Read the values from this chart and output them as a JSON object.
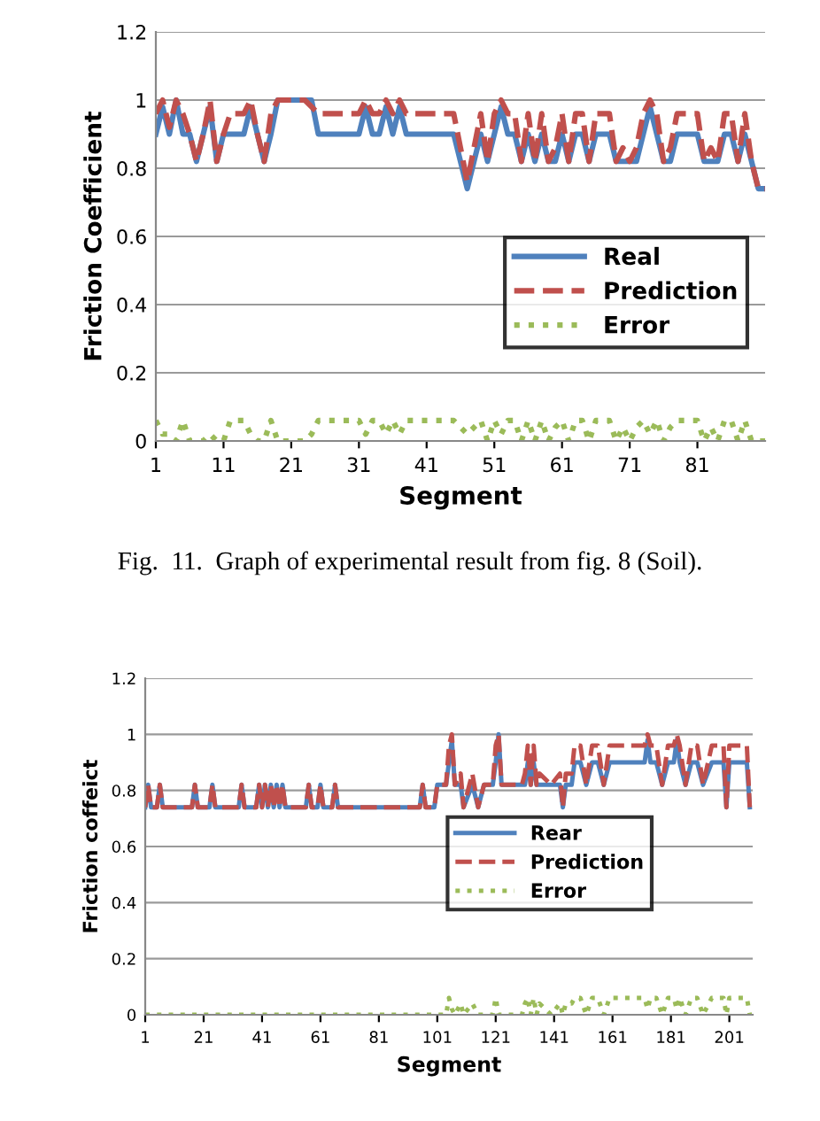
{
  "chart_data": [
    {
      "type": "line",
      "xlabel": "Segment",
      "ylabel": "Friction Coefficient",
      "annotations": [
        "Fig.  11.  Graph of experimental result from fig. 8 (Soil)."
      ],
      "x": [
        1,
        2,
        3,
        4,
        5,
        6,
        7,
        8,
        9,
        10,
        11,
        12,
        13,
        14,
        15,
        16,
        17,
        18,
        19,
        20,
        21,
        22,
        23,
        24,
        25,
        26,
        27,
        28,
        29,
        30,
        31,
        32,
        33,
        34,
        35,
        36,
        37,
        38,
        39,
        40,
        41,
        42,
        43,
        44,
        45,
        46,
        47,
        48,
        49,
        50,
        51,
        52,
        53,
        54,
        55,
        56,
        57,
        58,
        59,
        60,
        61,
        62,
        63,
        64,
        65,
        66,
        67,
        68,
        69,
        70,
        71,
        72,
        73,
        74,
        75,
        76,
        77,
        78,
        79,
        80,
        81,
        82,
        83,
        84,
        85,
        86,
        87,
        88,
        89,
        90,
        91
      ],
      "series": [
        {
          "name": "Real",
          "color": "#4f81bd",
          "line_style": "solid",
          "values": [
            0.9,
            0.98,
            0.9,
            1.0,
            0.9,
            0.9,
            0.82,
            0.9,
            0.98,
            0.82,
            0.9,
            0.9,
            0.9,
            0.9,
            0.98,
            0.9,
            0.82,
            0.9,
            1.0,
            1.0,
            1.0,
            1.0,
            1.0,
            1.0,
            0.9,
            0.9,
            0.9,
            0.9,
            0.9,
            0.9,
            0.9,
            0.98,
            0.9,
            0.9,
            0.98,
            0.9,
            0.98,
            0.9,
            0.9,
            0.9,
            0.9,
            0.9,
            0.9,
            0.9,
            0.9,
            0.82,
            0.74,
            0.82,
            0.9,
            0.82,
            0.9,
            0.98,
            0.9,
            0.9,
            0.82,
            0.9,
            0.82,
            0.9,
            0.82,
            0.82,
            0.9,
            0.82,
            0.9,
            0.9,
            0.82,
            0.9,
            0.9,
            0.9,
            0.82,
            0.82,
            0.82,
            0.82,
            0.9,
            0.98,
            0.9,
            0.82,
            0.82,
            0.9,
            0.9,
            0.9,
            0.9,
            0.82,
            0.82,
            0.82,
            0.9,
            0.9,
            0.82,
            0.9,
            0.82,
            0.74,
            0.74
          ]
        },
        {
          "name": "Prediction",
          "color": "#c0504d",
          "line_style": "dashed",
          "values": [
            0.96,
            1.0,
            0.92,
            1.0,
            0.96,
            0.9,
            0.82,
            0.9,
            1.0,
            0.82,
            0.9,
            0.96,
            0.96,
            0.96,
            1.0,
            0.9,
            0.82,
            0.96,
            1.0,
            1.0,
            1.0,
            1.0,
            1.0,
            0.98,
            0.96,
            0.96,
            0.96,
            0.96,
            0.96,
            0.96,
            0.96,
            1.0,
            0.96,
            0.96,
            1.0,
            0.96,
            1.0,
            0.96,
            0.96,
            0.96,
            0.96,
            0.96,
            0.96,
            0.96,
            0.96,
            0.86,
            0.76,
            0.86,
            0.96,
            0.82,
            0.96,
            1.0,
            0.96,
            0.96,
            0.82,
            0.96,
            0.82,
            0.96,
            0.82,
            0.86,
            0.96,
            0.82,
            0.96,
            0.96,
            0.82,
            0.96,
            0.96,
            0.96,
            0.82,
            0.86,
            0.82,
            0.86,
            0.96,
            1.0,
            0.96,
            0.82,
            0.86,
            0.96,
            0.96,
            0.96,
            0.96,
            0.82,
            0.86,
            0.82,
            0.96,
            0.96,
            0.82,
            0.96,
            0.82,
            0.74,
            0.74
          ]
        },
        {
          "name": "Error",
          "color": "#9bbb59",
          "line_style": "dotted",
          "values": [
            0.06,
            0.02,
            0.02,
            0,
            0.06,
            0,
            0,
            0,
            0.02,
            0,
            0,
            0.06,
            0.06,
            0.06,
            0.02,
            0,
            0,
            0.06,
            0,
            0,
            0,
            0,
            0,
            0.02,
            0.06,
            0.06,
            0.06,
            0.06,
            0.06,
            0.06,
            0.06,
            0.02,
            0.06,
            0.06,
            0.02,
            0.06,
            0.02,
            0.06,
            0.06,
            0.06,
            0.06,
            0.06,
            0.06,
            0.06,
            0.06,
            0.04,
            0.02,
            0.04,
            0.06,
            0,
            0.06,
            0.02,
            0.06,
            0.06,
            0,
            0.06,
            0,
            0.06,
            0,
            0.04,
            0.06,
            0,
            0.06,
            0.06,
            0,
            0.06,
            0.06,
            0.06,
            0,
            0.04,
            0,
            0.04,
            0.06,
            0.02,
            0.06,
            0,
            0.04,
            0.06,
            0.06,
            0.06,
            0.06,
            0,
            0.04,
            0,
            0.06,
            0.06,
            0,
            0.06,
            0,
            0,
            0
          ]
        }
      ],
      "xlim": [
        1,
        91
      ],
      "xticks": [
        1,
        11,
        21,
        31,
        41,
        51,
        61,
        71,
        81
      ],
      "ylim": [
        0,
        1.2
      ],
      "yticks": [
        0,
        0.2,
        0.4,
        0.6,
        0.8,
        1,
        1.2
      ],
      "grid": "y",
      "legend": "bottom right",
      "marker": "none"
    },
    {
      "type": "line",
      "xlabel": "Segment",
      "ylabel": "Friction coffeict",
      "x": [
        1,
        2,
        3,
        5,
        6,
        7,
        17,
        18,
        19,
        23,
        24,
        25,
        33,
        34,
        35,
        39,
        40,
        41,
        42,
        43,
        44,
        45,
        46,
        47,
        48,
        49,
        50,
        56,
        57,
        58,
        60,
        61,
        62,
        65,
        66,
        67,
        95,
        96,
        97,
        100,
        101,
        104,
        105,
        106,
        107,
        109,
        110,
        113,
        115,
        117,
        120,
        121,
        122,
        123,
        126,
        130,
        131,
        132,
        133,
        134,
        135,
        136,
        140,
        143,
        144,
        145,
        147,
        148,
        150,
        152,
        154,
        156,
        158,
        160,
        162,
        165,
        168,
        170,
        172,
        173,
        174,
        176,
        178,
        180,
        182,
        183,
        184,
        186,
        188,
        190,
        192,
        195,
        198,
        199,
        200,
        201,
        204,
        207,
        208
      ],
      "series": [
        {
          "name": "Rear",
          "color": "#4f81bd",
          "line_style": "solid",
          "values": [
            0.74,
            0.82,
            0.74,
            0.74,
            0.82,
            0.74,
            0.74,
            0.82,
            0.74,
            0.74,
            0.82,
            0.74,
            0.74,
            0.82,
            0.74,
            0.74,
            0.82,
            0.74,
            0.82,
            0.74,
            0.82,
            0.74,
            0.82,
            0.74,
            0.82,
            0.74,
            0.74,
            0.74,
            0.82,
            0.74,
            0.74,
            0.82,
            0.74,
            0.74,
            0.82,
            0.74,
            0.74,
            0.82,
            0.74,
            0.74,
            0.82,
            0.82,
            0.9,
            0.98,
            0.82,
            0.82,
            0.74,
            0.82,
            0.74,
            0.82,
            0.82,
            0.9,
            1.0,
            0.82,
            0.82,
            0.82,
            0.82,
            0.9,
            0.82,
            0.9,
            0.82,
            0.82,
            0.82,
            0.82,
            0.74,
            0.82,
            0.82,
            0.9,
            0.9,
            0.82,
            0.9,
            0.9,
            0.82,
            0.9,
            0.9,
            0.9,
            0.9,
            0.9,
            0.9,
            0.98,
            0.9,
            0.9,
            0.82,
            0.9,
            0.9,
            0.98,
            0.9,
            0.82,
            0.9,
            0.9,
            0.82,
            0.9,
            0.9,
            0.9,
            0.74,
            0.9,
            0.9,
            0.9,
            0.74
          ]
        },
        {
          "name": "Prediction",
          "color": "#c0504d",
          "line_style": "dashed",
          "values": [
            0.74,
            0.82,
            0.74,
            0.74,
            0.82,
            0.74,
            0.74,
            0.82,
            0.74,
            0.74,
            0.82,
            0.74,
            0.74,
            0.82,
            0.74,
            0.74,
            0.82,
            0.74,
            0.82,
            0.74,
            0.82,
            0.74,
            0.82,
            0.74,
            0.82,
            0.74,
            0.74,
            0.74,
            0.82,
            0.74,
            0.74,
            0.82,
            0.74,
            0.74,
            0.82,
            0.74,
            0.74,
            0.82,
            0.74,
            0.74,
            0.82,
            0.82,
            0.96,
            1.0,
            0.82,
            0.86,
            0.74,
            0.86,
            0.74,
            0.82,
            0.82,
            0.96,
            1.0,
            0.82,
            0.82,
            0.82,
            0.86,
            0.96,
            0.82,
            0.96,
            0.82,
            0.86,
            0.82,
            0.86,
            0.74,
            0.86,
            0.86,
            0.96,
            0.96,
            0.82,
            0.96,
            0.96,
            0.82,
            0.96,
            0.96,
            0.96,
            0.96,
            0.96,
            0.96,
            1.0,
            0.96,
            0.96,
            0.82,
            0.96,
            0.96,
            1.0,
            0.96,
            0.82,
            0.96,
            0.96,
            0.82,
            0.96,
            0.96,
            0.96,
            0.74,
            0.96,
            0.96,
            0.96,
            0.74
          ]
        },
        {
          "name": "Error",
          "color": "#9bbb59",
          "line_style": "dotted",
          "values": [
            0,
            0,
            0,
            0,
            0,
            0,
            0,
            0,
            0,
            0,
            0,
            0,
            0,
            0,
            0,
            0,
            0,
            0,
            0,
            0,
            0,
            0,
            0,
            0,
            0,
            0,
            0,
            0,
            0,
            0,
            0,
            0,
            0,
            0,
            0,
            0,
            0,
            0,
            0,
            0,
            0,
            0,
            0.06,
            0.02,
            0,
            0.04,
            0,
            0.04,
            0,
            0,
            0,
            0.06,
            0,
            0,
            0,
            0,
            0.04,
            0.06,
            0,
            0.06,
            0,
            0.04,
            0,
            0.04,
            0,
            0.04,
            0.04,
            0.06,
            0.06,
            0,
            0.06,
            0.06,
            0,
            0.06,
            0.06,
            0.06,
            0.06,
            0.06,
            0.06,
            0.02,
            0.06,
            0.06,
            0,
            0.06,
            0.06,
            0.02,
            0.06,
            0,
            0.06,
            0.06,
            0,
            0.06,
            0.06,
            0.06,
            0,
            0.06,
            0.06,
            0.06,
            0
          ]
        }
      ],
      "xlim": [
        1,
        209
      ],
      "xticks": [
        1,
        21,
        41,
        61,
        81,
        101,
        121,
        141,
        161,
        181,
        201
      ],
      "ylim": [
        0,
        1.2
      ],
      "yticks": [
        0,
        0.2,
        0.4,
        0.6,
        0.8,
        1,
        1.2
      ],
      "grid": "y",
      "legend": "center right",
      "marker": "none"
    }
  ]
}
